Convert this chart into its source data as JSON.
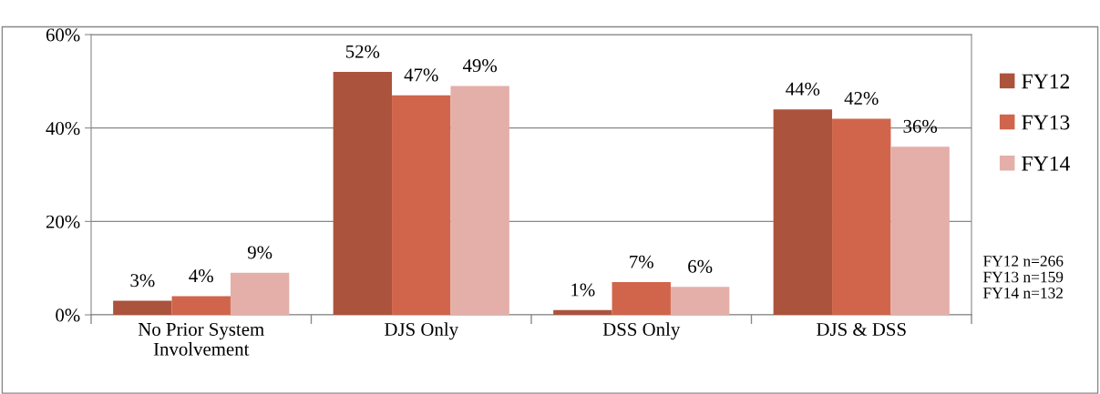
{
  "chart_data": {
    "type": "bar",
    "categories": [
      "No Prior System\nInvolvement",
      "DJS Only",
      "DSS Only",
      "DJS & DSS"
    ],
    "series": [
      {
        "name": "FY12",
        "color": "#ab533c",
        "values": [
          3,
          52,
          1,
          44
        ],
        "value_labels": [
          "3%",
          "52%",
          "1%",
          "44%"
        ]
      },
      {
        "name": "FY13",
        "color": "#d0654b",
        "values": [
          4,
          47,
          7,
          42
        ],
        "value_labels": [
          "4%",
          "47%",
          "7%",
          "42%"
        ]
      },
      {
        "name": "FY14",
        "color": "#e4afa8",
        "values": [
          9,
          49,
          6,
          36
        ],
        "value_labels": [
          "9%",
          "49%",
          "6%",
          "36%"
        ]
      }
    ],
    "ylim": [
      0,
      60
    ],
    "yticks": [
      {
        "value": 0,
        "label": "0%"
      },
      {
        "value": 20,
        "label": "20%"
      },
      {
        "value": 40,
        "label": "40%"
      },
      {
        "value": 60,
        "label": "60%"
      }
    ],
    "grid": "y",
    "legend": "right",
    "annotations": [
      "FY12 n=266\nFY13 n=159\nFY14 n=132"
    ]
  }
}
